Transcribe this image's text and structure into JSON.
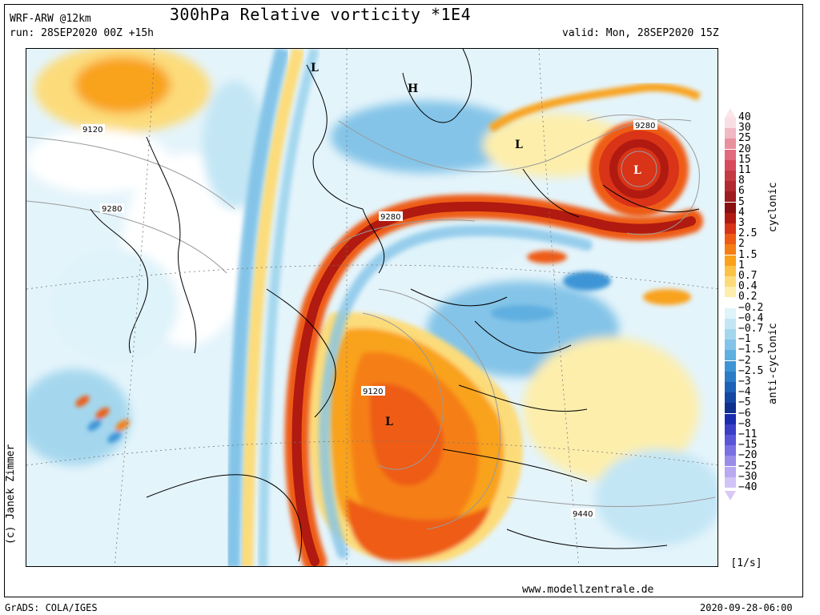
{
  "header": {
    "model": "WRF-ARW @12km",
    "title": "300hPa Relative vorticity *1E4",
    "run": "run: 28SEP2020 00Z +15h",
    "valid": "valid: Mon, 28SEP2020 15Z"
  },
  "map": {
    "pressure_labels": [
      "9120",
      "9280",
      "9280",
      "9280",
      "9120",
      "9440"
    ],
    "centers": [
      "L",
      "H",
      "L",
      "L",
      "L"
    ]
  },
  "colorbar": {
    "ticks": [
      "40",
      "30",
      "25",
      "20",
      "15",
      "11",
      "8",
      "6",
      "5",
      "4",
      "3",
      "2.5",
      "2",
      "1.5",
      "1",
      "0.7",
      "0.4",
      "0.2",
      "−0.2",
      "−0.4",
      "−0.7",
      "−1",
      "−1.5",
      "−2",
      "−2.5",
      "−3",
      "−4",
      "−5",
      "−6",
      "−8",
      "−11",
      "−15",
      "−20",
      "−25",
      "−30",
      "−40"
    ],
    "colors": [
      "#f7dfe4",
      "#f0b9c4",
      "#e9909f",
      "#e26a7c",
      "#d94a5c",
      "#c63a44",
      "#b22a30",
      "#9e1c1f",
      "#8a0f10",
      "#b01a10",
      "#d93318",
      "#ee5b14",
      "#f57f12",
      "#f9a21a",
      "#fbc245",
      "#fcdc7a",
      "#fdeeac",
      "#ffffff",
      "#dff3fa",
      "#c3e6f5",
      "#a4d7ee",
      "#84c4e8",
      "#5fafe0",
      "#3d95d6",
      "#2c7cc8",
      "#1d62b8",
      "#1547a3",
      "#10308e",
      "#1a2db0",
      "#3b3fc8",
      "#5a56d8",
      "#7b71e2",
      "#9a8ce9",
      "#b8a9f0",
      "#d2c4f6"
    ],
    "cyclonic_label": "cyclonic",
    "anticyclonic_label": "anti-cyclonic",
    "unit": "[1/s]"
  },
  "footer": {
    "copyright": "(c) Janek Zimmer",
    "website": "www.modellzentrale.de",
    "grads": "GrADS: COLA/IGES",
    "timestamp": "2020-09-28-06:00"
  }
}
